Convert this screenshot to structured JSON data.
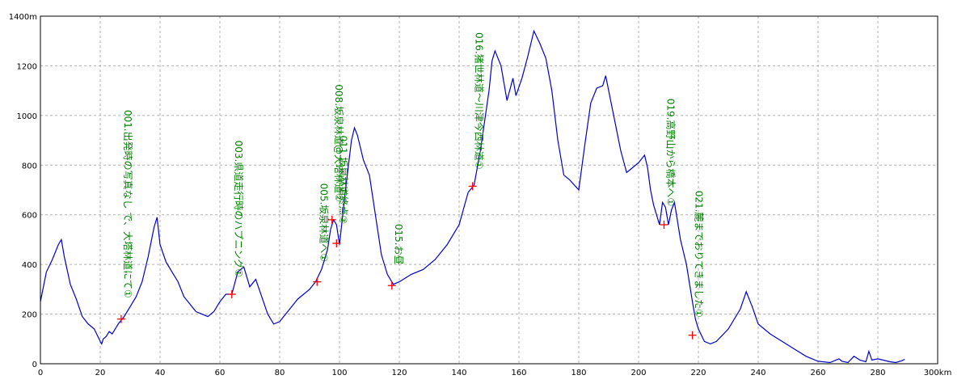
{
  "chart_data": {
    "type": "line",
    "grid": true,
    "colors": {
      "line": "#0000cc",
      "marker": "#ff0000",
      "annotation": "#008000",
      "grid": "#b0b0b0",
      "frame": "#000000"
    },
    "xlim": [
      0,
      300
    ],
    "ylim": [
      0,
      1400
    ],
    "x_ticks": [
      {
        "v": 0,
        "label": "0"
      },
      {
        "v": 20,
        "label": "20"
      },
      {
        "v": 40,
        "label": "40"
      },
      {
        "v": 60,
        "label": "60"
      },
      {
        "v": 80,
        "label": "80"
      },
      {
        "v": 100,
        "label": "100"
      },
      {
        "v": 120,
        "label": "120"
      },
      {
        "v": 140,
        "label": "140"
      },
      {
        "v": 160,
        "label": "160"
      },
      {
        "v": 180,
        "label": "180"
      },
      {
        "v": 200,
        "label": "200"
      },
      {
        "v": 220,
        "label": "220"
      },
      {
        "v": 240,
        "label": "240"
      },
      {
        "v": 260,
        "label": "260"
      },
      {
        "v": 280,
        "label": "280"
      },
      {
        "v": 300,
        "label": "300km"
      }
    ],
    "y_ticks": [
      {
        "v": 0,
        "label": "0"
      },
      {
        "v": 200,
        "label": "200"
      },
      {
        "v": 400,
        "label": "400"
      },
      {
        "v": 600,
        "label": "600"
      },
      {
        "v": 800,
        "label": "800"
      },
      {
        "v": 1000,
        "label": "1000"
      },
      {
        "v": 1200,
        "label": "1200"
      },
      {
        "v": 1400,
        "label": "1400m"
      }
    ],
    "series": [
      {
        "x": [
          0,
          2,
          4,
          6,
          7,
          8,
          10,
          12,
          14,
          16,
          18,
          20,
          20.5,
          21,
          22,
          23,
          24,
          25,
          26,
          28,
          30,
          32,
          34,
          36,
          38,
          39,
          40,
          42,
          44,
          46,
          48,
          50,
          52,
          54,
          56,
          58,
          60,
          62,
          64,
          66,
          68,
          70,
          72,
          74,
          76,
          78,
          80,
          82,
          84,
          86,
          88,
          90,
          92,
          94,
          96,
          97,
          98,
          99,
          100,
          102,
          104,
          105,
          106,
          108,
          110,
          112,
          114,
          116,
          118,
          120,
          124,
          128,
          132,
          136,
          140,
          143,
          145,
          147,
          150,
          151,
          152,
          154,
          156,
          158,
          159,
          161,
          163,
          165,
          167,
          169,
          171,
          173,
          175,
          177,
          180,
          182,
          184,
          186,
          188,
          189,
          190,
          192,
          194,
          196,
          198,
          200,
          202,
          203,
          204,
          205,
          206,
          207,
          208,
          209,
          210,
          211,
          212,
          214,
          216,
          218,
          219,
          220,
          222,
          224,
          226,
          230,
          234,
          236,
          238,
          240,
          244,
          248,
          252,
          256,
          260,
          264,
          267,
          268,
          270,
          272,
          274,
          276,
          277,
          278,
          280,
          284,
          286,
          288,
          289
        ],
        "y": [
          250,
          370,
          420,
          480,
          500,
          430,
          320,
          260,
          190,
          160,
          140,
          90,
          80,
          100,
          110,
          130,
          120,
          140,
          160,
          190,
          230,
          270,
          330,
          430,
          550,
          590,
          480,
          410,
          370,
          330,
          270,
          240,
          210,
          200,
          190,
          210,
          250,
          280,
          280,
          370,
          390,
          310,
          340,
          270,
          200,
          160,
          170,
          200,
          230,
          260,
          280,
          300,
          330,
          380,
          460,
          540,
          580,
          560,
          480,
          700,
          900,
          950,
          920,
          820,
          760,
          600,
          440,
          360,
          320,
          330,
          360,
          380,
          420,
          480,
          560,
          690,
          720,
          850,
          1100,
          1220,
          1260,
          1200,
          1060,
          1150,
          1080,
          1150,
          1240,
          1340,
          1290,
          1230,
          1100,
          900,
          760,
          740,
          700,
          880,
          1050,
          1110,
          1120,
          1160,
          1100,
          980,
          860,
          770,
          790,
          810,
          840,
          790,
          700,
          640,
          600,
          560,
          650,
          630,
          560,
          620,
          650,
          500,
          400,
          250,
          180,
          140,
          90,
          80,
          90,
          140,
          220,
          290,
          230,
          160,
          120,
          90,
          60,
          30,
          10,
          5,
          20,
          10,
          5,
          30,
          15,
          8,
          50,
          15,
          20,
          8,
          5,
          12,
          18
        ]
      }
    ],
    "points": [
      {
        "x": 27,
        "y": 180,
        "label": "001.出発時の写真なし で、大塔林道にて①"
      },
      {
        "x": 64,
        "y": 280,
        "label": "003.県道走行時のハプニング①"
      },
      {
        "x": 92.5,
        "y": 330,
        "label": "005.坂泉林道へ①"
      },
      {
        "x": 97.5,
        "y": 580,
        "label": "008.坂泉林道@大塔林道②"
      },
      {
        "x": 99,
        "y": 485,
        "label": "011.坂泉林道終点③"
      },
      {
        "x": 117.5,
        "y": 315,
        "label": "015.お昼"
      },
      {
        "x": 144.5,
        "y": 715,
        "label": "016.猪世林道～川津今西林道①"
      },
      {
        "x": 208.5,
        "y": 560,
        "label": "019.高野山から橋本へ①"
      },
      {
        "x": 218,
        "y": 115,
        "label": "021.麓までおりてきました①"
      }
    ]
  }
}
